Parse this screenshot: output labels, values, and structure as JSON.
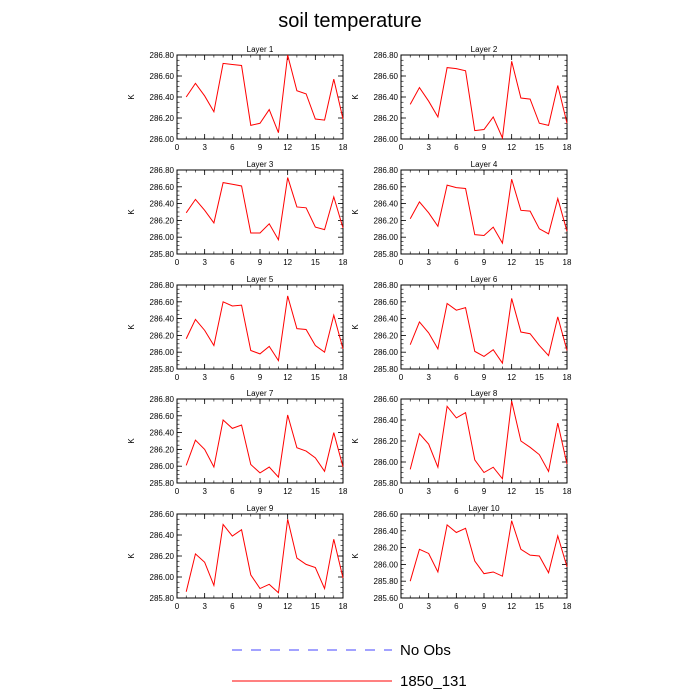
{
  "figure": {
    "title": "soil temperature",
    "legend": [
      {
        "label": "No Obs",
        "color": "#0000ff",
        "dash": "dashed"
      },
      {
        "label": "1850_131",
        "color": "#ff0000",
        "dash": "solid"
      }
    ]
  },
  "chart_data": [
    {
      "type": "line",
      "title": "Layer 1",
      "xlabel": "",
      "ylabel": "K",
      "x": [
        1,
        2,
        3,
        4,
        5,
        6,
        7,
        8,
        9,
        10,
        11,
        12,
        13,
        14,
        15,
        16,
        17,
        18
      ],
      "xlim": [
        0,
        18
      ],
      "xticks": [
        "0",
        "3",
        "6",
        "9",
        "12",
        "15",
        "18"
      ],
      "ylim": [
        286.0,
        286.8
      ],
      "yticks": [
        "286.00",
        "286.20",
        "286.40",
        "286.60",
        "286.80"
      ],
      "series": [
        {
          "name": "1850_131",
          "values": [
            286.4,
            286.53,
            286.41,
            286.26,
            286.72,
            286.71,
            286.7,
            286.13,
            286.15,
            286.28,
            286.06,
            286.8,
            286.46,
            286.43,
            286.19,
            286.18,
            286.57,
            286.19
          ]
        }
      ]
    },
    {
      "type": "line",
      "title": "Layer 2",
      "xlabel": "",
      "ylabel": "K",
      "x": [
        1,
        2,
        3,
        4,
        5,
        6,
        7,
        8,
        9,
        10,
        11,
        12,
        13,
        14,
        15,
        16,
        17,
        18
      ],
      "xlim": [
        0,
        18
      ],
      "xticks": [
        "0",
        "3",
        "6",
        "9",
        "12",
        "15",
        "18"
      ],
      "ylim": [
        286.0,
        286.8
      ],
      "yticks": [
        "286.00",
        "286.20",
        "286.40",
        "286.60",
        "286.80"
      ],
      "series": [
        {
          "name": "1850_131",
          "values": [
            286.33,
            286.49,
            286.36,
            286.21,
            286.68,
            286.67,
            286.65,
            286.08,
            286.09,
            286.21,
            286.01,
            286.74,
            286.39,
            286.38,
            286.15,
            286.13,
            286.51,
            286.15
          ]
        }
      ]
    },
    {
      "type": "line",
      "title": "Layer 3",
      "xlabel": "",
      "ylabel": "K",
      "x": [
        1,
        2,
        3,
        4,
        5,
        6,
        7,
        8,
        9,
        10,
        11,
        12,
        13,
        14,
        15,
        16,
        17,
        18
      ],
      "xlim": [
        0,
        18
      ],
      "xticks": [
        "0",
        "3",
        "6",
        "9",
        "12",
        "15",
        "18"
      ],
      "ylim": [
        285.8,
        286.8
      ],
      "yticks": [
        "285.80",
        "286.00",
        "286.20",
        "286.40",
        "286.60",
        "286.80"
      ],
      "series": [
        {
          "name": "1850_131",
          "values": [
            286.29,
            286.45,
            286.32,
            286.17,
            286.65,
            286.63,
            286.61,
            286.05,
            286.05,
            286.16,
            285.97,
            286.71,
            286.36,
            286.35,
            286.12,
            286.09,
            286.48,
            286.11
          ]
        }
      ]
    },
    {
      "type": "line",
      "title": "Layer 4",
      "xlabel": "",
      "ylabel": "K",
      "x": [
        1,
        2,
        3,
        4,
        5,
        6,
        7,
        8,
        9,
        10,
        11,
        12,
        13,
        14,
        15,
        16,
        17,
        18
      ],
      "xlim": [
        0,
        18
      ],
      "xticks": [
        "0",
        "3",
        "6",
        "9",
        "12",
        "15",
        "18"
      ],
      "ylim": [
        285.8,
        286.8
      ],
      "yticks": [
        "285.80",
        "286.00",
        "286.20",
        "286.40",
        "286.60",
        "286.80"
      ],
      "series": [
        {
          "name": "1850_131",
          "values": [
            286.22,
            286.42,
            286.29,
            286.13,
            286.62,
            286.59,
            286.58,
            286.03,
            286.02,
            286.12,
            285.93,
            286.69,
            286.32,
            286.31,
            286.1,
            286.04,
            286.46,
            286.07
          ]
        }
      ]
    },
    {
      "type": "line",
      "title": "Layer 5",
      "xlabel": "",
      "ylabel": "K",
      "x": [
        1,
        2,
        3,
        4,
        5,
        6,
        7,
        8,
        9,
        10,
        11,
        12,
        13,
        14,
        15,
        16,
        17,
        18
      ],
      "xlim": [
        0,
        18
      ],
      "xticks": [
        "0",
        "3",
        "6",
        "9",
        "12",
        "15",
        "18"
      ],
      "ylim": [
        285.8,
        286.8
      ],
      "yticks": [
        "285.80",
        "286.00",
        "286.20",
        "286.40",
        "286.60",
        "286.80"
      ],
      "series": [
        {
          "name": "1850_131",
          "values": [
            286.16,
            286.39,
            286.26,
            286.08,
            286.6,
            286.55,
            286.56,
            286.02,
            285.98,
            286.07,
            285.9,
            286.67,
            286.28,
            286.27,
            286.08,
            286.0,
            286.44,
            286.04
          ]
        }
      ]
    },
    {
      "type": "line",
      "title": "Layer 6",
      "xlabel": "",
      "ylabel": "K",
      "x": [
        1,
        2,
        3,
        4,
        5,
        6,
        7,
        8,
        9,
        10,
        11,
        12,
        13,
        14,
        15,
        16,
        17,
        18
      ],
      "xlim": [
        0,
        18
      ],
      "xticks": [
        "0",
        "3",
        "6",
        "9",
        "12",
        "15",
        "18"
      ],
      "ylim": [
        285.8,
        286.8
      ],
      "yticks": [
        "285.80",
        "286.00",
        "286.20",
        "286.40",
        "286.60",
        "286.80"
      ],
      "series": [
        {
          "name": "1850_131",
          "values": [
            286.09,
            286.36,
            286.23,
            286.04,
            286.58,
            286.5,
            286.53,
            286.01,
            285.95,
            286.03,
            285.87,
            286.64,
            286.24,
            286.22,
            286.08,
            285.96,
            286.42,
            286.02
          ]
        }
      ]
    },
    {
      "type": "line",
      "title": "Layer 7",
      "xlabel": "",
      "ylabel": "K",
      "x": [
        1,
        2,
        3,
        4,
        5,
        6,
        7,
        8,
        9,
        10,
        11,
        12,
        13,
        14,
        15,
        16,
        17,
        18
      ],
      "xlim": [
        0,
        18
      ],
      "xticks": [
        "0",
        "3",
        "6",
        "9",
        "12",
        "15",
        "18"
      ],
      "ylim": [
        285.8,
        286.8
      ],
      "yticks": [
        "285.80",
        "286.00",
        "286.20",
        "286.40",
        "286.60",
        "286.80"
      ],
      "series": [
        {
          "name": "1850_131",
          "values": [
            286.01,
            286.31,
            286.2,
            285.99,
            286.55,
            286.45,
            286.49,
            286.02,
            285.92,
            285.99,
            285.87,
            286.61,
            286.22,
            286.18,
            286.1,
            285.94,
            286.4,
            285.99
          ]
        }
      ]
    },
    {
      "type": "line",
      "title": "Layer 8",
      "xlabel": "",
      "ylabel": "K",
      "x": [
        1,
        2,
        3,
        4,
        5,
        6,
        7,
        8,
        9,
        10,
        11,
        12,
        13,
        14,
        15,
        16,
        17,
        18
      ],
      "xlim": [
        0,
        18
      ],
      "xticks": [
        "0",
        "3",
        "6",
        "9",
        "12",
        "15",
        "18"
      ],
      "ylim": [
        285.8,
        286.6
      ],
      "yticks": [
        "285.80",
        "286.00",
        "286.20",
        "286.40",
        "286.60"
      ],
      "series": [
        {
          "name": "1850_131",
          "values": [
            285.93,
            286.27,
            286.17,
            285.95,
            286.53,
            286.42,
            286.47,
            286.02,
            285.9,
            285.95,
            285.84,
            286.58,
            286.2,
            286.14,
            286.07,
            285.91,
            286.37,
            285.98
          ]
        }
      ]
    },
    {
      "type": "line",
      "title": "Layer 9",
      "xlabel": "",
      "ylabel": "K",
      "x": [
        1,
        2,
        3,
        4,
        5,
        6,
        7,
        8,
        9,
        10,
        11,
        12,
        13,
        14,
        15,
        16,
        17,
        18
      ],
      "xlim": [
        0,
        18
      ],
      "xticks": [
        "0",
        "3",
        "6",
        "9",
        "12",
        "15",
        "18"
      ],
      "ylim": [
        285.8,
        286.6
      ],
      "yticks": [
        "285.80",
        "286.00",
        "286.20",
        "286.40",
        "286.60"
      ],
      "series": [
        {
          "name": "1850_131",
          "values": [
            285.86,
            286.22,
            286.14,
            285.92,
            286.5,
            286.39,
            286.45,
            286.02,
            285.89,
            285.93,
            285.85,
            286.55,
            286.18,
            286.12,
            286.09,
            285.89,
            286.36,
            285.99
          ]
        }
      ]
    },
    {
      "type": "line",
      "title": "Layer 10",
      "xlabel": "",
      "ylabel": "K",
      "x": [
        1,
        2,
        3,
        4,
        5,
        6,
        7,
        8,
        9,
        10,
        11,
        12,
        13,
        14,
        15,
        16,
        17,
        18
      ],
      "xlim": [
        0,
        18
      ],
      "xticks": [
        "0",
        "3",
        "6",
        "9",
        "12",
        "15",
        "18"
      ],
      "ylim": [
        285.6,
        286.6
      ],
      "yticks": [
        "285.60",
        "285.80",
        "286.00",
        "286.20",
        "286.40",
        "286.60"
      ],
      "series": [
        {
          "name": "1850_131",
          "values": [
            285.8,
            286.18,
            286.13,
            285.91,
            286.47,
            286.38,
            286.43,
            286.04,
            285.89,
            285.91,
            285.86,
            286.52,
            286.18,
            286.11,
            286.1,
            285.9,
            286.34,
            285.97
          ]
        }
      ]
    }
  ]
}
